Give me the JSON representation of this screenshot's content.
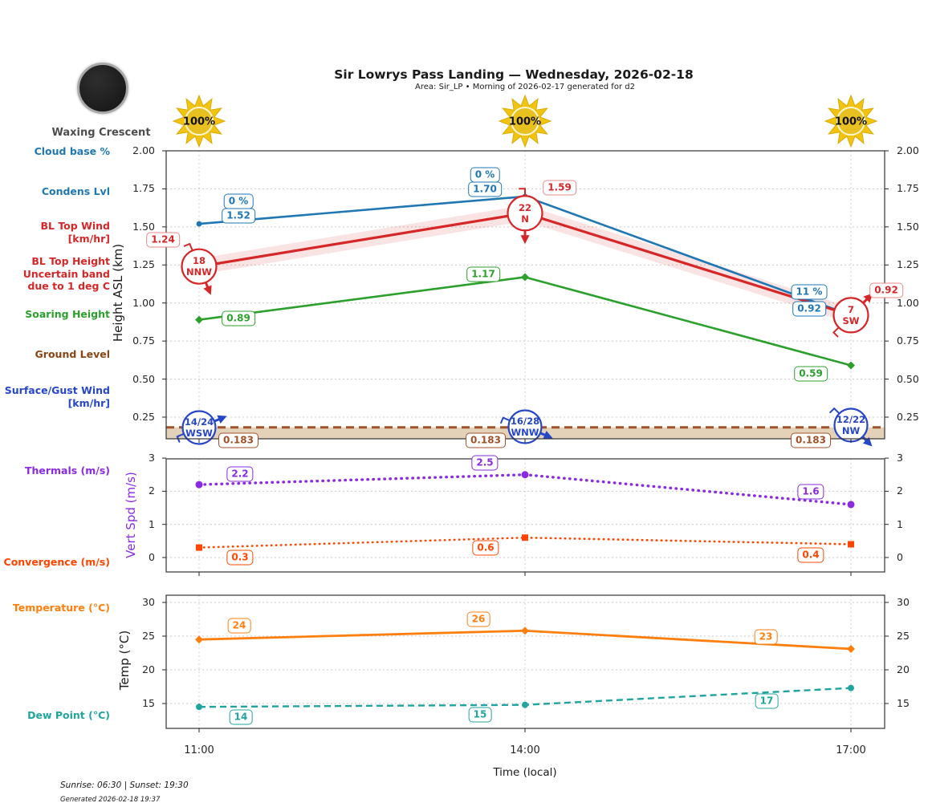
{
  "header": {
    "title": "Sir Lowrys Pass Landing — Wednesday, 2026-02-18",
    "subtitle": "Area: Sir_LP • Morning of 2026-02-17 generated for d2"
  },
  "moon": {
    "label": "Waxing Crescent"
  },
  "suns": [
    {
      "label": "100%"
    },
    {
      "label": "100%"
    },
    {
      "label": "100%"
    }
  ],
  "legend": [
    {
      "id": "cloud-base",
      "lines": [
        "Cloud base %"
      ],
      "color": "#1f77b4"
    },
    {
      "id": "condens-lvl",
      "lines": [
        "Condens Lvl"
      ],
      "color": "#1f77b4"
    },
    {
      "id": "bl-top-wind",
      "lines": [
        "BL Top Wind",
        "[km/hr]"
      ],
      "color": "#d62728"
    },
    {
      "id": "bl-top-height",
      "lines": [
        "BL Top Height",
        "Uncertain band",
        "due to 1 deg C"
      ],
      "color": "#d62728"
    },
    {
      "id": "soaring-height",
      "lines": [
        "Soaring Height"
      ],
      "color": "#2ca02c"
    },
    {
      "id": "ground-level",
      "lines": [
        "Ground Level"
      ],
      "color": "#8b4513"
    },
    {
      "id": "surface-wind",
      "lines": [
        "Surface/Gust Wind",
        "[km/hr]"
      ],
      "color": "#2646c8"
    },
    {
      "id": "thermals",
      "lines": [
        "Thermals (m/s)"
      ],
      "color": "#8a2be2"
    },
    {
      "id": "convergence",
      "lines": [
        "Convergence (m/s)"
      ],
      "color": "#ff4500"
    },
    {
      "id": "temperature",
      "lines": [
        "Temperature (°C)"
      ],
      "color": "#ff7f0e"
    },
    {
      "id": "dew-point",
      "lines": [
        "Dew Point (°C)"
      ],
      "color": "#20a49e"
    }
  ],
  "x_axis": {
    "ticks": [
      "11:00",
      "14:00",
      "17:00"
    ],
    "label": "Time (local)"
  },
  "chart_data": [
    {
      "type": "line",
      "ylabel": "Height ASL (km)",
      "yticks": [
        "2.00",
        "1.75",
        "1.50",
        "1.25",
        "1.00",
        "0.75",
        "0.50",
        "0.25"
      ],
      "ylim": [
        0.11,
        2.0
      ],
      "x": [
        "11:00",
        "14:00",
        "17:00"
      ],
      "series": [
        {
          "name": "Condens Lvl",
          "color": "#1f77b4",
          "values": [
            1.52,
            1.7,
            0.92
          ],
          "labels": [
            "1.52",
            "1.70",
            "0.92"
          ],
          "cloud_base_pct": [
            "0 %",
            "0 %",
            "11 %"
          ]
        },
        {
          "name": "BL Top Height",
          "color": "#d62728",
          "values": [
            1.24,
            1.59,
            0.92
          ],
          "labels": [
            "1.24",
            "1.59",
            "0.92"
          ],
          "uncertainty_band_km": 0.055,
          "wind": [
            {
              "speed": "18",
              "dir": "NNW"
            },
            {
              "speed": "22",
              "dir": "N"
            },
            {
              "speed": "7",
              "dir": "SW"
            }
          ]
        },
        {
          "name": "Soaring Height",
          "color": "#2ca02c",
          "values": [
            0.89,
            1.17,
            0.59
          ],
          "labels": [
            "0.89",
            "1.17",
            "0.59"
          ]
        },
        {
          "name": "Ground Level",
          "color": "#a0522d",
          "values": [
            0.183,
            0.183,
            0.183
          ],
          "labels": [
            "0.183",
            "0.183",
            "0.183"
          ],
          "band_fill": "#d2b48c"
        }
      ],
      "surface_wind": [
        {
          "speed": "14/24",
          "dir": "WSW"
        },
        {
          "speed": "16/28",
          "dir": "WNW"
        },
        {
          "speed": "12/22",
          "dir": "NW"
        }
      ]
    },
    {
      "type": "line",
      "ylabel": "Vert Spd (m/s)",
      "yticks": [
        "3",
        "2",
        "1",
        "0"
      ],
      "ylim": [
        -0.45,
        3.0
      ],
      "x": [
        "11:00",
        "14:00",
        "17:00"
      ],
      "series": [
        {
          "name": "Thermals",
          "color": "#8a2be2",
          "values": [
            2.2,
            2.5,
            1.6
          ],
          "labels": [
            "2.2",
            "2.5",
            "1.6"
          ]
        },
        {
          "name": "Convergence",
          "color": "#ff4500",
          "values": [
            0.3,
            0.6,
            0.4
          ],
          "labels": [
            "0.3",
            "0.6",
            "0.4"
          ]
        }
      ]
    },
    {
      "type": "line",
      "ylabel": "Temp (°C)",
      "yticks": [
        "30",
        "25",
        "20",
        "15"
      ],
      "ylim": [
        11.3,
        31.2
      ],
      "x": [
        "11:00",
        "14:00",
        "17:00"
      ],
      "series": [
        {
          "name": "Temperature",
          "color": "#ff7f0e",
          "values": [
            24,
            26,
            23
          ],
          "plot_values": [
            24.5,
            25.8,
            23.1
          ],
          "labels": [
            "24",
            "26",
            "23"
          ]
        },
        {
          "name": "Dew Point",
          "color": "#20a49e",
          "values": [
            14,
            15,
            17
          ],
          "plot_values": [
            14.5,
            14.8,
            17.3
          ],
          "labels": [
            "14",
            "15",
            "17"
          ]
        }
      ]
    }
  ],
  "footer": {
    "sun_times": "Sunrise: 06:30 | Sunset: 19:30",
    "generated": "Generated 2026-02-18 19:37"
  }
}
